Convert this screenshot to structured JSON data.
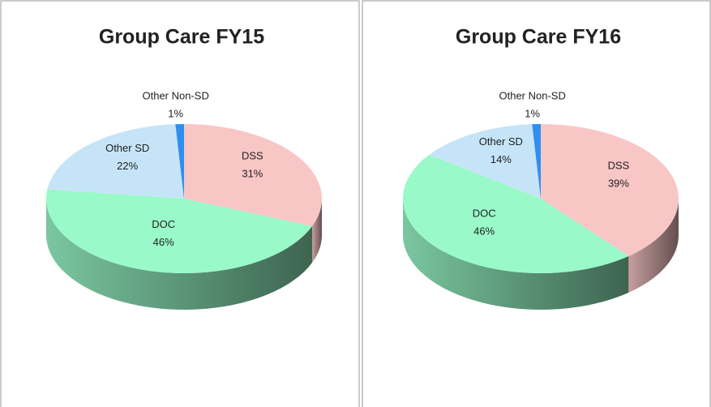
{
  "chart_data": [
    {
      "type": "pie3d",
      "title": "Group Care FY15",
      "categories": [
        "DSS",
        "DOC",
        "Other SD",
        "Other Non-SD"
      ],
      "values": [
        31,
        46,
        22,
        1
      ],
      "value_labels": [
        "31%",
        "46%",
        "22%",
        "1%"
      ],
      "colors": [
        "#f9c6c6",
        "#99f9c8",
        "#c6e4f7",
        "#2f8fef"
      ]
    },
    {
      "type": "pie3d",
      "title": "Group Care FY16",
      "categories": [
        "DSS",
        "DOC",
        "Other SD",
        "Other Non-SD"
      ],
      "values": [
        39,
        46,
        14,
        1
      ],
      "value_labels": [
        "39%",
        "46%",
        "14%",
        "1%"
      ],
      "colors": [
        "#f9c6c6",
        "#99f9c8",
        "#c6e4f7",
        "#2f8fef"
      ]
    }
  ]
}
